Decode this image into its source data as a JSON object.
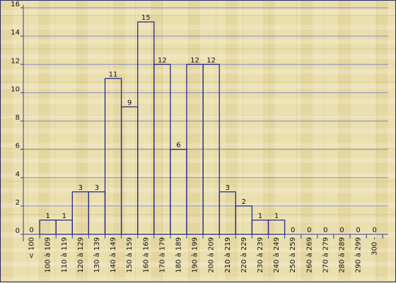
{
  "chart_data": {
    "type": "bar",
    "title": "",
    "xlabel": "",
    "ylabel": "",
    "ylim": [
      0,
      16
    ],
    "yticks": [
      0,
      2,
      4,
      6,
      8,
      10,
      12,
      14,
      16
    ],
    "grid": true,
    "categories": [
      "< 100",
      "100 à 109",
      "110 à 119",
      "120 à 129",
      "130 à 139",
      "140 à 149",
      "150 à 159",
      "160 à 169",
      "170 à 179",
      "180 à 189",
      "190 à 199",
      "200 à 209",
      "210 à 219",
      "220 à 229",
      "230 à 239",
      "240 à 249",
      "250 à 259",
      "260 à 269",
      "270 à 279",
      "280 à 289",
      "290 à 299",
      "300 -"
    ],
    "values": [
      0,
      1,
      1,
      3,
      3,
      11,
      9,
      15,
      12,
      6,
      12,
      12,
      3,
      2,
      1,
      1,
      0,
      0,
      0,
      0,
      0,
      0
    ],
    "colors": {
      "bar_stroke": "#2a2a8a",
      "grid": "#8c8cc6",
      "axis": "#3a3a8a"
    }
  }
}
